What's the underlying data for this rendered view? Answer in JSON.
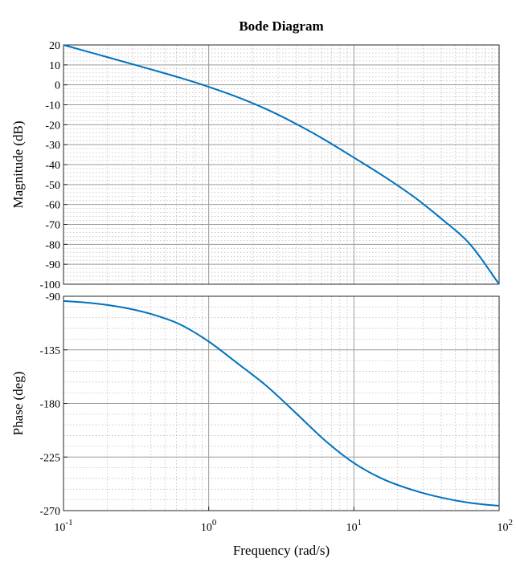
{
  "chart_data": {
    "type": "line",
    "title": "Bode Diagram",
    "xlabel": "Frequency  (rad/s)",
    "x_scale": "log",
    "xlim": [
      0.1,
      100
    ],
    "x_ticks": [
      0.1,
      1,
      10,
      100
    ],
    "x_tick_labels": [
      {
        "base": "10",
        "exp": "-1"
      },
      {
        "base": "10",
        "exp": "0"
      },
      {
        "base": "10",
        "exp": "1"
      },
      {
        "base": "10",
        "exp": "2"
      }
    ],
    "grid": "major and minor",
    "panels": [
      {
        "ylabel": "Magnitude (dB)",
        "ylim": [
          -100,
          20
        ],
        "y_ticks": [
          20,
          10,
          0,
          -10,
          -20,
          -30,
          -40,
          -50,
          -60,
          -70,
          -80,
          -90,
          -100
        ],
        "y_tick_labels": [
          "20",
          "10",
          "0",
          "-10",
          "-20",
          "-30",
          "-40",
          "-50",
          "-60",
          "-70",
          "-80",
          "-90",
          "-100"
        ],
        "series": [
          {
            "color": "#0072bd",
            "x": [
              0.1,
              0.158,
              0.251,
              0.398,
              0.631,
              1,
              1.585,
              2.512,
              3.981,
              6.31,
              10,
              15.85,
              25.12,
              39.81,
              63.1,
              100
            ],
            "y": [
              20,
              16,
              11.9,
              7.8,
              3.6,
              -1,
              -6.2,
              -12.3,
              -19.5,
              -27.6,
              -36.5,
              -45.6,
              -55.5,
              -67,
              -80,
              -100
            ]
          }
        ]
      },
      {
        "ylabel": "Phase (deg)",
        "ylim": [
          -270,
          -90
        ],
        "y_ticks": [
          -90,
          -135,
          -180,
          -225,
          -270
        ],
        "y_tick_labels": [
          "-90",
          "-135",
          "-180",
          "-225",
          "-270"
        ],
        "series": [
          {
            "color": "#0072bd",
            "x": [
              0.1,
              0.158,
              0.251,
              0.398,
              0.631,
              1,
              1.585,
              2.512,
              3.981,
              6.31,
              10,
              15.85,
              25.12,
              39.81,
              63.1,
              100
            ],
            "y": [
              -94,
              -95.8,
              -99.2,
              -104.8,
              -113.5,
              -128,
              -146.5,
              -165.5,
              -188,
              -211,
              -230,
              -243.5,
              -252.5,
              -259,
              -263.5,
              -266
            ]
          }
        ]
      }
    ]
  }
}
